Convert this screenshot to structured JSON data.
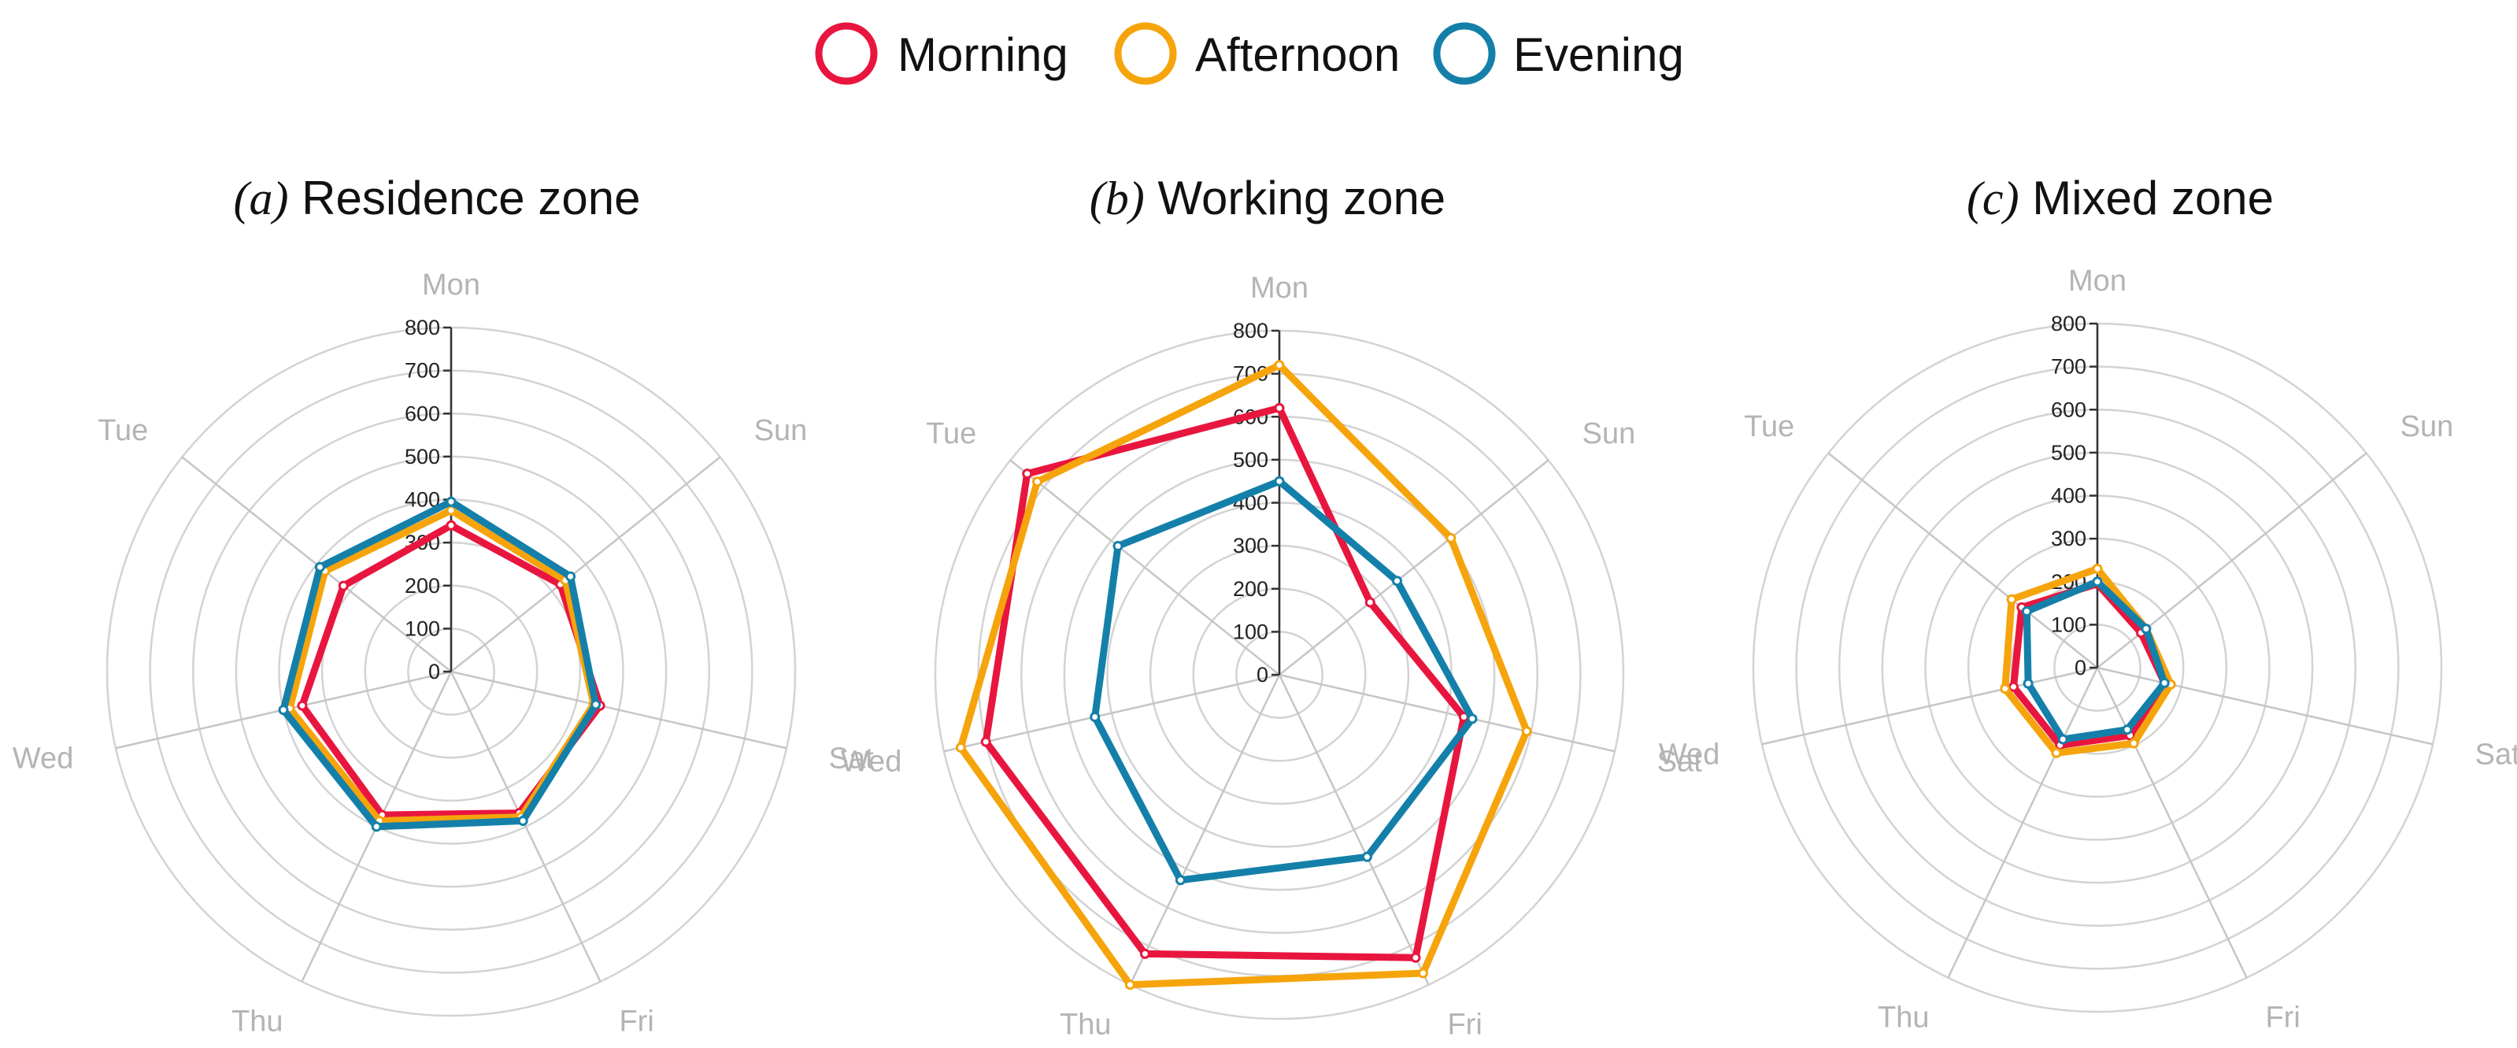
{
  "legend": {
    "items": [
      {
        "label": "Morning",
        "color": "#e8163f"
      },
      {
        "label": "Afternoon",
        "color": "#f6a40b"
      },
      {
        "label": "Evening",
        "color": "#1480a9"
      }
    ]
  },
  "chart_data": [
    {
      "type": "radar",
      "title": "Residence zone",
      "title_prefix": "(a)",
      "axes": [
        "Mon",
        "Sun",
        "Sat",
        "Fri",
        "Thu",
        "Wed",
        "Tue"
      ],
      "rlim": [
        0,
        800
      ],
      "ticks": [
        0,
        100,
        200,
        300,
        400,
        500,
        600,
        700,
        800
      ],
      "grid": true,
      "series": [
        {
          "name": "Morning",
          "color": "#e8163f",
          "values": [
            340,
            325,
            355,
            365,
            370,
            355,
            320
          ]
        },
        {
          "name": "Afternoon",
          "color": "#f6a40b",
          "values": [
            375,
            340,
            340,
            375,
            385,
            385,
            375
          ]
        },
        {
          "name": "Evening",
          "color": "#1480a9",
          "values": [
            395,
            355,
            345,
            385,
            400,
            400,
            390
          ]
        }
      ]
    },
    {
      "type": "radar",
      "title": "Working zone",
      "title_prefix": "(b)",
      "axes": [
        "Mon",
        "Sun",
        "Sat",
        "Fri",
        "Thu",
        "Wed",
        "Tue"
      ],
      "rlim": [
        0,
        800
      ],
      "ticks": [
        0,
        100,
        200,
        300,
        400,
        500,
        600,
        700,
        800
      ],
      "grid": true,
      "series": [
        {
          "name": "Morning",
          "color": "#e8163f",
          "values": [
            620,
            270,
            440,
            730,
            720,
            700,
            750
          ]
        },
        {
          "name": "Afternoon",
          "color": "#f6a40b",
          "values": [
            720,
            510,
            590,
            770,
            800,
            760,
            720
          ]
        },
        {
          "name": "Evening",
          "color": "#1480a9",
          "values": [
            450,
            350,
            460,
            470,
            530,
            440,
            480
          ]
        }
      ]
    },
    {
      "type": "radar",
      "title": "Mixed zone",
      "title_prefix": "(c)",
      "axes": [
        "Mon",
        "Sun",
        "Sat",
        "Fri",
        "Thu",
        "Wed",
        "Tue"
      ],
      "rlim": [
        0,
        800
      ],
      "ticks": [
        0,
        100,
        200,
        300,
        400,
        500,
        600,
        700,
        800
      ],
      "grid": true,
      "series": [
        {
          "name": "Morning",
          "color": "#e8163f",
          "values": [
            195,
            130,
            160,
            175,
            200,
            200,
            225
          ]
        },
        {
          "name": "Afternoon",
          "color": "#f6a40b",
          "values": [
            230,
            145,
            175,
            195,
            220,
            220,
            255
          ]
        },
        {
          "name": "Evening",
          "color": "#1480a9",
          "values": [
            200,
            145,
            160,
            160,
            185,
            165,
            210
          ]
        }
      ]
    }
  ]
}
